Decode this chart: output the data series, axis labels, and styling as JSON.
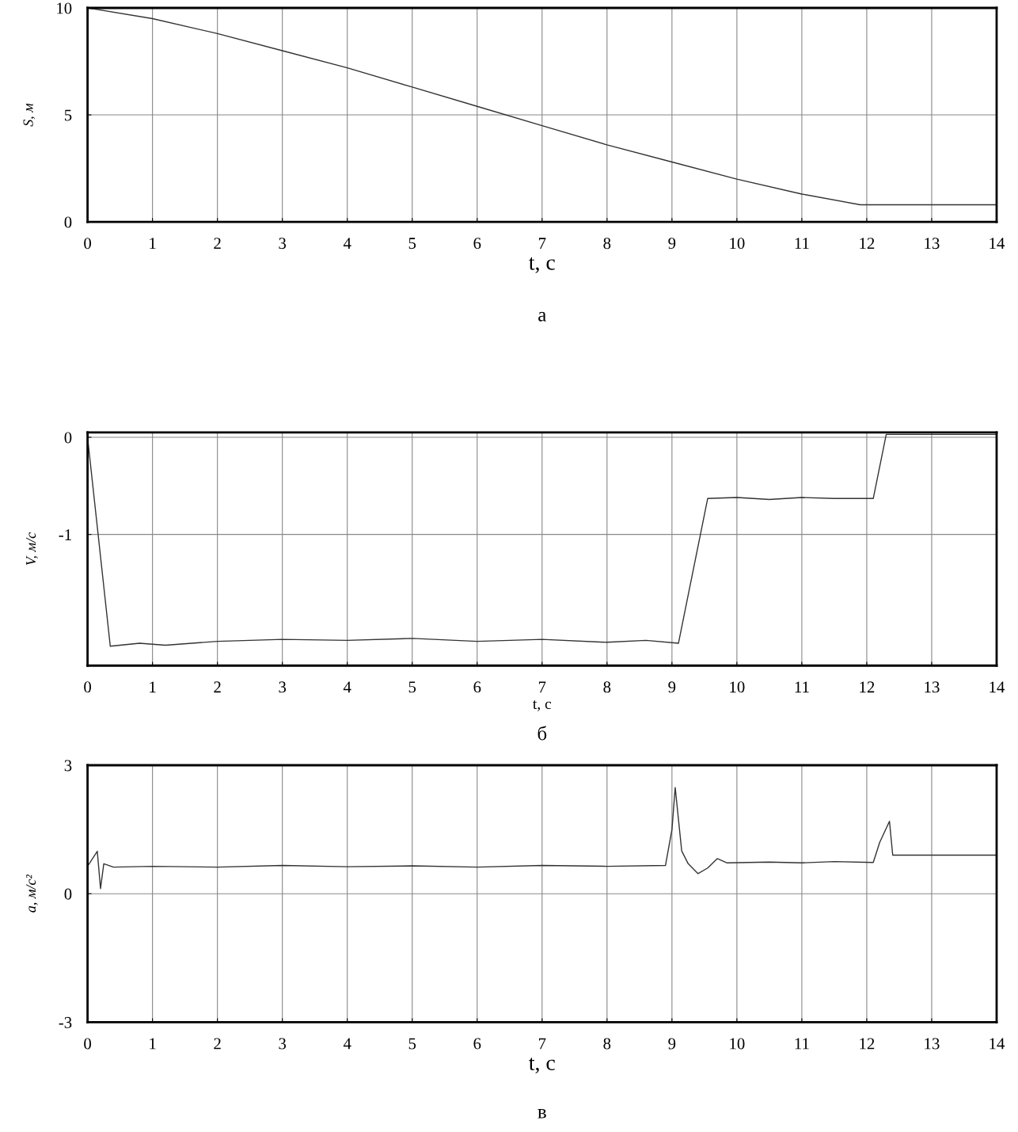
{
  "chart_data": [
    {
      "type": "line",
      "xlabel": "t, с",
      "ylabel": "S, м",
      "annotations": [
        "а"
      ],
      "xlim": [
        0,
        14
      ],
      "xticks": [
        0,
        1,
        2,
        3,
        4,
        5,
        6,
        7,
        8,
        9,
        10,
        11,
        12,
        13,
        14
      ],
      "ylim": [
        0,
        10
      ],
      "yticks": [
        0,
        5,
        10
      ],
      "grid": true,
      "series": [
        {
          "color": "#333333",
          "x": [
            0,
            1,
            2,
            3,
            4,
            5,
            6,
            7,
            8,
            9,
            10,
            11,
            11.9,
            14
          ],
          "values": [
            10,
            9.5,
            8.8,
            8.0,
            7.2,
            6.3,
            5.4,
            4.5,
            3.6,
            2.8,
            2.0,
            1.3,
            0.8,
            0.8
          ]
        }
      ]
    },
    {
      "type": "line",
      "xlabel": "t, с",
      "ylabel": "V, м/с",
      "annotations": [
        "б"
      ],
      "xlim": [
        0,
        14
      ],
      "xticks": [
        0,
        1,
        2,
        3,
        4,
        5,
        6,
        7,
        8,
        9,
        10,
        11,
        12,
        13,
        14
      ],
      "ylim": [
        -2.35,
        0.05
      ],
      "yticks": [
        -1,
        0
      ],
      "grid": true,
      "series": [
        {
          "color": "#333333",
          "x": [
            0,
            0.35,
            0.8,
            1.2,
            2,
            3,
            4,
            5,
            6,
            7,
            8,
            8.6,
            9.1,
            9.55,
            10,
            10.5,
            11,
            11.5,
            12.1,
            12.3,
            14
          ],
          "values": [
            0,
            -2.15,
            -2.12,
            -2.14,
            -2.1,
            -2.08,
            -2.09,
            -2.07,
            -2.1,
            -2.08,
            -2.11,
            -2.09,
            -2.12,
            -0.63,
            -0.62,
            -0.64,
            -0.62,
            -0.63,
            -0.63,
            0.03,
            0.03
          ]
        }
      ]
    },
    {
      "type": "line",
      "xlabel": "t, с",
      "ylabel": "a, м/с²",
      "annotations": [
        "в"
      ],
      "xlim": [
        0,
        14
      ],
      "xticks": [
        0,
        1,
        2,
        3,
        4,
        5,
        6,
        7,
        8,
        9,
        10,
        11,
        12,
        13,
        14
      ],
      "ylim": [
        -3,
        3
      ],
      "yticks": [
        -3,
        0,
        3
      ],
      "grid": true,
      "series": [
        {
          "color": "#333333",
          "x": [
            0,
            0.15,
            0.2,
            0.25,
            0.4,
            1,
            2,
            3,
            4,
            5,
            6,
            7,
            8,
            8.9,
            9.0,
            9.05,
            9.15,
            9.25,
            9.4,
            9.55,
            9.7,
            9.85,
            10.5,
            11,
            11.5,
            12.1,
            12.2,
            12.35,
            12.4,
            13,
            14
          ],
          "values": [
            0.64,
            0.99,
            0.12,
            0.7,
            0.62,
            0.64,
            0.62,
            0.66,
            0.63,
            0.65,
            0.62,
            0.66,
            0.64,
            0.66,
            1.5,
            2.48,
            1.0,
            0.7,
            0.47,
            0.6,
            0.82,
            0.72,
            0.74,
            0.72,
            0.75,
            0.73,
            1.2,
            1.69,
            0.9,
            0.9,
            0.9
          ]
        }
      ]
    }
  ]
}
